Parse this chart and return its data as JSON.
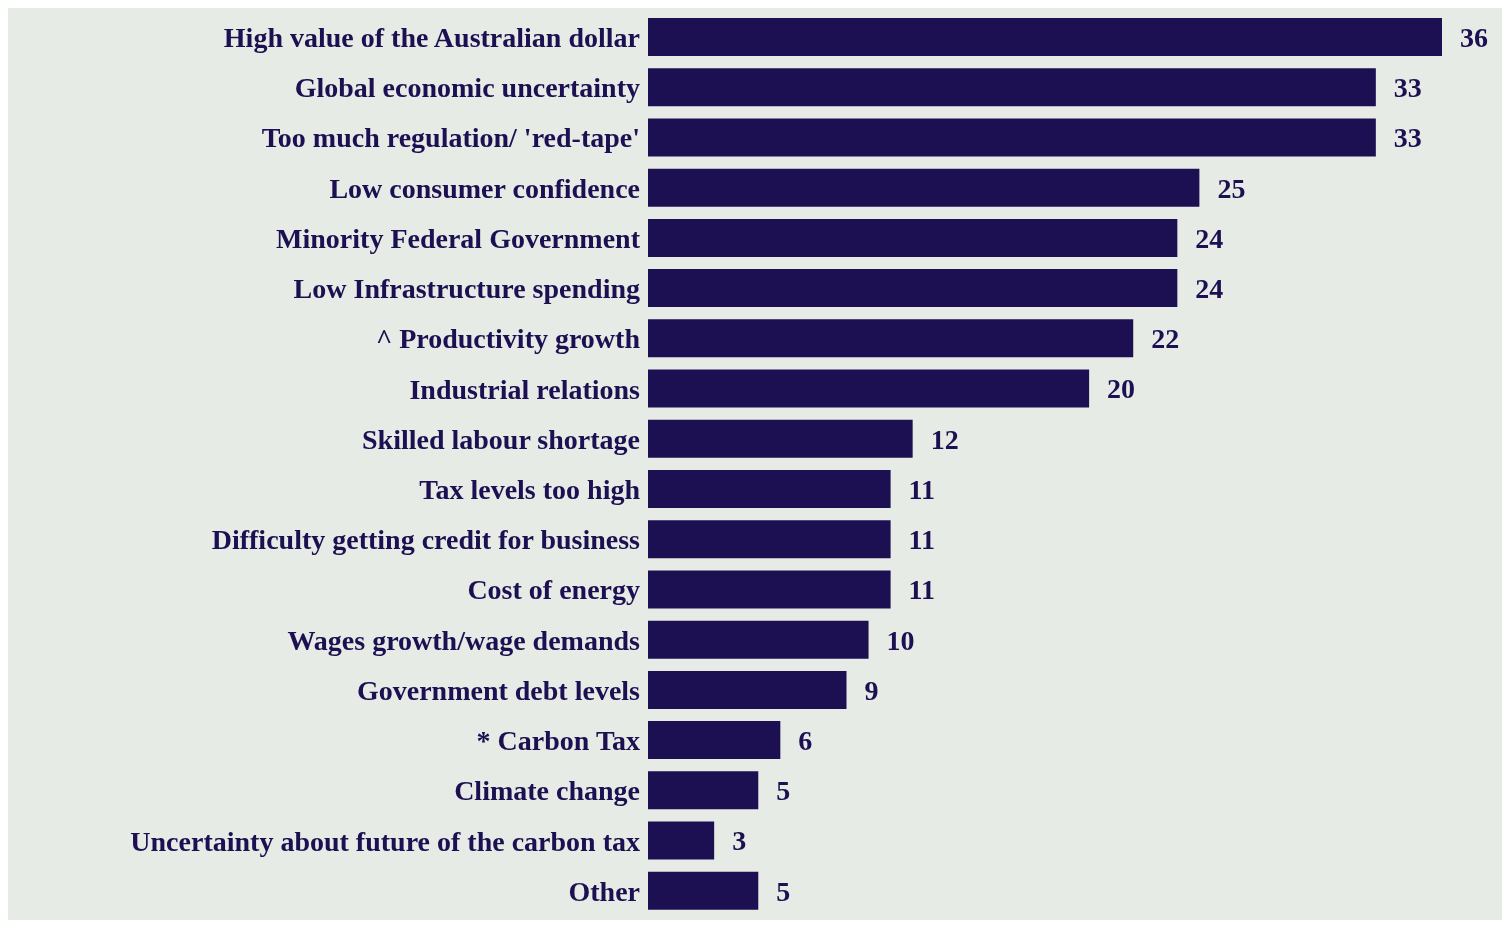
{
  "chart_data": {
    "type": "bar",
    "orientation": "horizontal",
    "categories": [
      "High value of the Australian dollar",
      "Global economic uncertainty",
      "Too much regulation/ 'red-tape'",
      "Low consumer confidence",
      "Minority Federal Government",
      "Low Infrastructure spending",
      "^ Productivity growth",
      "Industrial relations",
      "Skilled labour shortage",
      "Tax levels too high",
      "Difficulty getting credit for business",
      "Cost of energy",
      "Wages growth/wage demands",
      "Government debt levels",
      "* Carbon Tax",
      "Climate change",
      "Uncertainty about future of the carbon tax",
      "Other"
    ],
    "values": [
      36,
      33,
      33,
      25,
      24,
      24,
      22,
      20,
      12,
      11,
      11,
      11,
      10,
      9,
      6,
      5,
      3,
      5
    ],
    "color": "#1c1052",
    "data_labels": true,
    "grid": false,
    "legend": false
  }
}
